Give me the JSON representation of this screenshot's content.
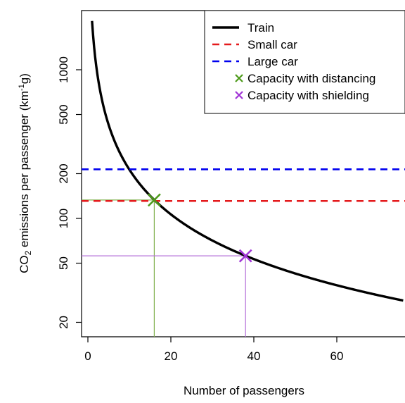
{
  "chart_data": {
    "type": "line",
    "xlabel": "Number of passengers",
    "ylabel_parts": {
      "pre": "CO",
      "sub": "2",
      "mid": " emissions per passenger (km",
      "sup": "-1",
      "post": "g)"
    },
    "xlim": [
      -1,
      77
    ],
    "ylim": [
      16,
      2800
    ],
    "y_scale": "log",
    "x_ticks": [
      0,
      20,
      40,
      60
    ],
    "x_tick_labels": [
      "0",
      "20",
      "40",
      "60"
    ],
    "y_ticks": [
      20,
      50,
      100,
      200,
      500,
      1000
    ],
    "y_tick_labels": [
      "20",
      "50",
      "100",
      "200",
      "500",
      "1000"
    ],
    "series": [
      {
        "name": "Train",
        "kind": "curve",
        "formula": "k/x",
        "k": 2130,
        "x_range": [
          1,
          76
        ],
        "color": "#000000",
        "dash": "none"
      },
      {
        "name": "Small car",
        "kind": "hline",
        "y": 131,
        "color": "#e41a1c",
        "dash": "10,7"
      },
      {
        "name": "Large car",
        "kind": "hline",
        "y": 214,
        "color": "#0000ee",
        "dash": "10,7"
      },
      {
        "name": "Capacity with distancing",
        "kind": "marker",
        "x": 16,
        "y": 133,
        "color": "#4d9a1a",
        "guide_color": "#7fb04c"
      },
      {
        "name": "Capacity with shielding",
        "kind": "marker",
        "x": 38,
        "y": 56,
        "color": "#a033d6",
        "guide_color": "#b672d8"
      }
    ],
    "legend_placement": "top-right",
    "grid": false
  }
}
